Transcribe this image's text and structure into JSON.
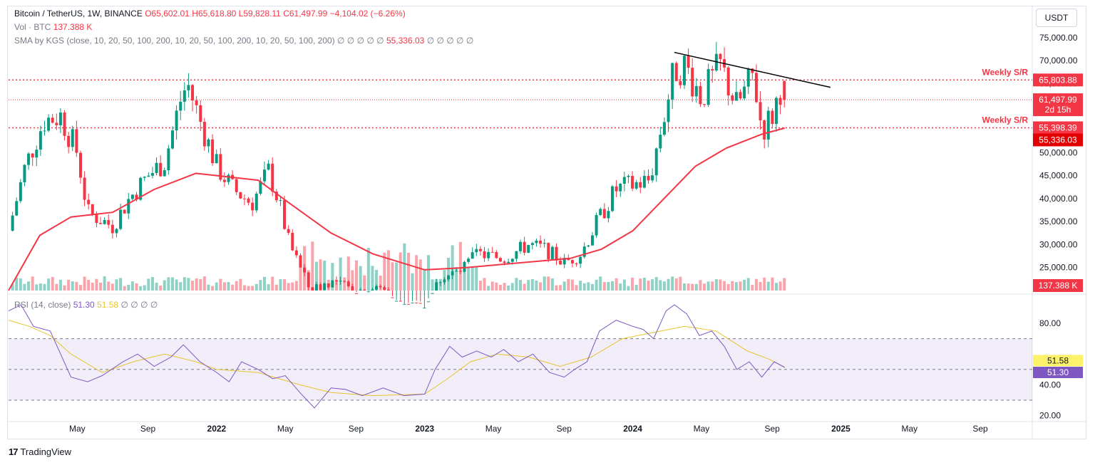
{
  "header": {
    "symbol": "Bitcoin / TetherUS, 1W, BINANCE",
    "o_label": "O",
    "o": "65,602.01",
    "h_label": "H",
    "h": "65,618.80",
    "l_label": "L",
    "l": "59,828.11",
    "c_label": "C",
    "c": "61,497.99",
    "change": "−4,104.02 (−6.26%)",
    "vol_label": "Vol · BTC",
    "vol_value": "137.388 K",
    "sma_label": "SMA by KGS (close, 10, 20, 50, 100, 200, 10, 20, 50, 100, 200, 10, 20, 50, 100, 200)",
    "sma_nan_before": "∅ ∅ ∅ ∅ ∅",
    "sma_value": "55,336.03",
    "sma_nan_after": "∅ ∅ ∅ ∅ ∅",
    "rsi_label": "RSI (14, close)",
    "rsi_value": "51.30",
    "rsi_ma_value": "51.58",
    "rsi_nan": "∅ ∅ ∅ ∅"
  },
  "currency_button": "USDT",
  "branding": "TradingView",
  "colors": {
    "up": "#089981",
    "down": "#f23645",
    "sma": "#f23645",
    "rsi": "#7e57c2",
    "rsi_ma": "#e6c42f",
    "trend": "#000000"
  },
  "chart_data": [
    {
      "type": "candlestick",
      "title": "Bitcoin / TetherUS, 1W, BINANCE",
      "ylim": [
        20000,
        77000
      ],
      "y_ticks": [
        25000,
        30000,
        35000,
        40000,
        45000,
        50000,
        55000,
        60000,
        65000,
        70000,
        75000
      ],
      "y_tick_labels": [
        "25,000.00",
        "30,000.00",
        "35,000.00",
        "40,000.00",
        "45,000.00",
        "50,000.00",
        "55,000.00",
        "60,000.00",
        "65,000.00",
        "70,000.00",
        "75,000.00"
      ],
      "x_ticks": [
        {
          "label": "May",
          "t": 2021.33
        },
        {
          "label": "Sep",
          "t": 2021.67
        },
        {
          "label": "2022",
          "t": 2022.0
        },
        {
          "label": "May",
          "t": 2022.33
        },
        {
          "label": "Sep",
          "t": 2022.67
        },
        {
          "label": "2023",
          "t": 2023.0
        },
        {
          "label": "May",
          "t": 2023.33
        },
        {
          "label": "Sep",
          "t": 2023.67
        },
        {
          "label": "2024",
          "t": 2024.0
        },
        {
          "label": "May",
          "t": 2024.33
        },
        {
          "label": "Sep",
          "t": 2024.67
        },
        {
          "label": "2025",
          "t": 2025.0
        },
        {
          "label": "May",
          "t": 2025.33
        },
        {
          "label": "Sep",
          "t": 2025.67
        }
      ],
      "x_range": [
        2021.0,
        2025.92
      ],
      "price_path": [
        [
          2021.0,
          33000
        ],
        [
          2021.08,
          47000
        ],
        [
          2021.17,
          57000
        ],
        [
          2021.25,
          58000
        ],
        [
          2021.33,
          50000
        ],
        [
          2021.38,
          37000
        ],
        [
          2021.5,
          34000
        ],
        [
          2021.58,
          40000
        ],
        [
          2021.67,
          45000
        ],
        [
          2021.75,
          48000
        ],
        [
          2021.83,
          62000
        ],
        [
          2021.86,
          65000
        ],
        [
          2021.92,
          57000
        ],
        [
          2022.0,
          47000
        ],
        [
          2022.08,
          42000
        ],
        [
          2022.17,
          39000
        ],
        [
          2022.25,
          46000
        ],
        [
          2022.3,
          39000
        ],
        [
          2022.35,
          30000
        ],
        [
          2022.45,
          20000
        ],
        [
          2022.55,
          22000
        ],
        [
          2022.67,
          20000
        ],
        [
          2022.8,
          20500
        ],
        [
          2022.88,
          16500
        ],
        [
          2023.0,
          16800
        ],
        [
          2023.08,
          23000
        ],
        [
          2023.17,
          24000
        ],
        [
          2023.25,
          28000
        ],
        [
          2023.38,
          27000
        ],
        [
          2023.5,
          30000
        ],
        [
          2023.58,
          29000
        ],
        [
          2023.67,
          26000
        ],
        [
          2023.75,
          28000
        ],
        [
          2023.83,
          35000
        ],
        [
          2023.92,
          42000
        ],
        [
          2024.0,
          43000
        ],
        [
          2024.08,
          44000
        ],
        [
          2024.12,
          52000
        ],
        [
          2024.2,
          68000
        ],
        [
          2024.25,
          69000
        ],
        [
          2024.33,
          62000
        ],
        [
          2024.42,
          69000
        ],
        [
          2024.5,
          60000
        ],
        [
          2024.58,
          67000
        ],
        [
          2024.62,
          55000
        ],
        [
          2024.67,
          58000
        ],
        [
          2024.72,
          65800
        ],
        [
          2024.73,
          61498
        ]
      ],
      "last_candle": {
        "open": 65602.01,
        "high": 65618.8,
        "low": 59828.11,
        "close": 61497.99
      },
      "sma_path": [
        [
          2021.0,
          20000
        ],
        [
          2021.15,
          32000
        ],
        [
          2021.3,
          36000
        ],
        [
          2021.5,
          37000
        ],
        [
          2021.7,
          42000
        ],
        [
          2021.9,
          45500
        ],
        [
          2022.0,
          45000
        ],
        [
          2022.2,
          44000
        ],
        [
          2022.35,
          39000
        ],
        [
          2022.55,
          32500
        ],
        [
          2022.75,
          28000
        ],
        [
          2023.0,
          24500
        ],
        [
          2023.2,
          25000
        ],
        [
          2023.45,
          26000
        ],
        [
          2023.7,
          27000
        ],
        [
          2023.85,
          29000
        ],
        [
          2024.0,
          33000
        ],
        [
          2024.15,
          40000
        ],
        [
          2024.3,
          47000
        ],
        [
          2024.45,
          51000
        ],
        [
          2024.62,
          54000
        ],
        [
          2024.73,
          55336
        ]
      ],
      "trendline": [
        [
          2024.2,
          71800
        ],
        [
          2024.95,
          64200
        ]
      ],
      "levels": [
        {
          "name": "Weekly S/R",
          "value": 65803.88,
          "label": "65,803.88"
        },
        {
          "name": "Weekly S/R",
          "value": 55398.39,
          "label": "55,398.39"
        }
      ],
      "current_price": {
        "value": 61497.99,
        "label": "61,497.99",
        "countdown": "2d 15h"
      },
      "sma_price_label": "55,336.03",
      "volume_label": "137.388 K"
    },
    {
      "type": "line",
      "title": "RSI (14, close)",
      "ylim": [
        18,
        92
      ],
      "y_ticks": [
        20,
        40,
        80
      ],
      "y_tick_labels": [
        "20.00",
        "40.00",
        "80.00"
      ],
      "bands": {
        "upper": 70,
        "middle": 50,
        "lower": 30
      },
      "rsi_path": [
        [
          2021.0,
          88
        ],
        [
          2021.06,
          92
        ],
        [
          2021.12,
          78
        ],
        [
          2021.2,
          75
        ],
        [
          2021.25,
          60
        ],
        [
          2021.3,
          45
        ],
        [
          2021.38,
          42
        ],
        [
          2021.45,
          46
        ],
        [
          2021.55,
          55
        ],
        [
          2021.62,
          60
        ],
        [
          2021.7,
          52
        ],
        [
          2021.78,
          58
        ],
        [
          2021.84,
          66
        ],
        [
          2021.92,
          55
        ],
        [
          2022.0,
          48
        ],
        [
          2022.06,
          42
        ],
        [
          2022.12,
          55
        ],
        [
          2022.2,
          50
        ],
        [
          2022.27,
          44
        ],
        [
          2022.33,
          46
        ],
        [
          2022.4,
          35
        ],
        [
          2022.47,
          25
        ],
        [
          2022.55,
          38
        ],
        [
          2022.62,
          37
        ],
        [
          2022.7,
          33
        ],
        [
          2022.8,
          38
        ],
        [
          2022.9,
          33
        ],
        [
          2023.0,
          34
        ],
        [
          2023.05,
          50
        ],
        [
          2023.12,
          65
        ],
        [
          2023.18,
          58
        ],
        [
          2023.25,
          62
        ],
        [
          2023.32,
          58
        ],
        [
          2023.38,
          63
        ],
        [
          2023.45,
          55
        ],
        [
          2023.52,
          60
        ],
        [
          2023.6,
          48
        ],
        [
          2023.67,
          45
        ],
        [
          2023.72,
          50
        ],
        [
          2023.78,
          55
        ],
        [
          2023.84,
          75
        ],
        [
          2023.92,
          82
        ],
        [
          2024.0,
          78
        ],
        [
          2024.05,
          76
        ],
        [
          2024.1,
          70
        ],
        [
          2024.16,
          88
        ],
        [
          2024.2,
          92
        ],
        [
          2024.26,
          86
        ],
        [
          2024.32,
          72
        ],
        [
          2024.38,
          75
        ],
        [
          2024.44,
          65
        ],
        [
          2024.5,
          50
        ],
        [
          2024.56,
          55
        ],
        [
          2024.62,
          45
        ],
        [
          2024.68,
          55
        ],
        [
          2024.73,
          51.3
        ]
      ],
      "rsi_ma_path": [
        [
          2021.0,
          82
        ],
        [
          2021.1,
          78
        ],
        [
          2021.2,
          72
        ],
        [
          2021.3,
          60
        ],
        [
          2021.45,
          48
        ],
        [
          2021.6,
          55
        ],
        [
          2021.75,
          60
        ],
        [
          2021.9,
          55
        ],
        [
          2022.0,
          50
        ],
        [
          2022.2,
          48
        ],
        [
          2022.4,
          40
        ],
        [
          2022.55,
          35
        ],
        [
          2022.75,
          33
        ],
        [
          2023.0,
          34
        ],
        [
          2023.1,
          43
        ],
        [
          2023.22,
          55
        ],
        [
          2023.35,
          60
        ],
        [
          2023.5,
          58
        ],
        [
          2023.65,
          52
        ],
        [
          2023.8,
          58
        ],
        [
          2023.95,
          70
        ],
        [
          2024.1,
          74
        ],
        [
          2024.25,
          78
        ],
        [
          2024.4,
          75
        ],
        [
          2024.55,
          62
        ],
        [
          2024.65,
          57
        ],
        [
          2024.73,
          51.58
        ]
      ],
      "rsi_label": "51.30",
      "rsi_ma_label": "51.58"
    }
  ]
}
